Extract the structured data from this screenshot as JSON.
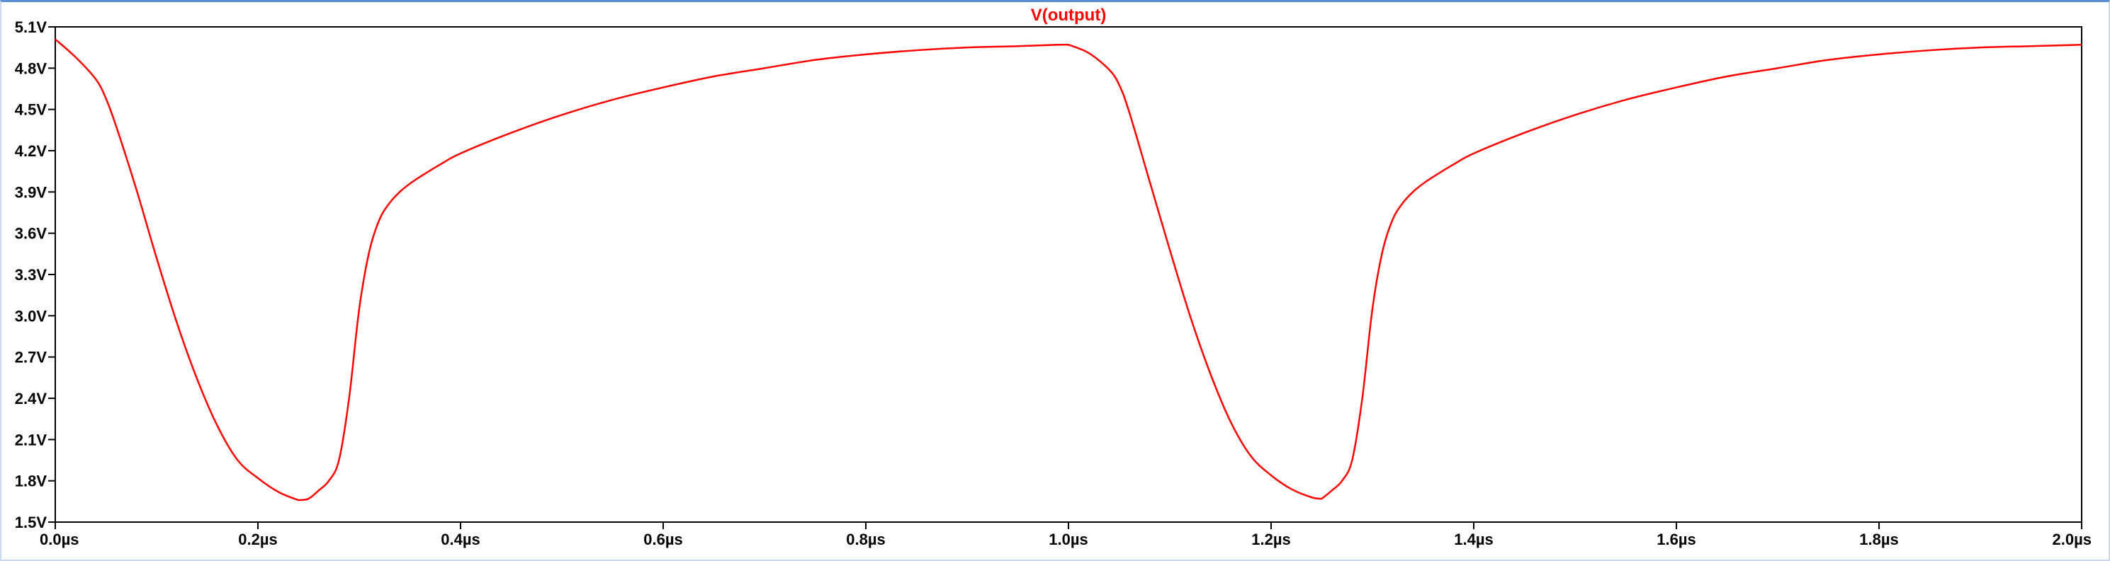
{
  "chart_data": {
    "type": "line",
    "title": "V(output)",
    "xlabel": "",
    "ylabel": "",
    "x_unit": "µs",
    "y_unit": "V",
    "xlim": [
      0.0,
      2.0
    ],
    "ylim": [
      1.5,
      5.1
    ],
    "grid": false,
    "x_ticks": [
      0.0,
      0.2,
      0.4,
      0.6,
      0.8,
      1.0,
      1.2,
      1.4,
      1.6,
      1.8,
      2.0
    ],
    "x_tick_labels": [
      "0.0µs",
      "0.2µs",
      "0.4µs",
      "0.6µs",
      "0.8µs",
      "1.0µs",
      "1.2µs",
      "1.4µs",
      "1.6µs",
      "1.8µs",
      "2.0µs"
    ],
    "y_ticks": [
      1.5,
      1.8,
      2.1,
      2.4,
      2.7,
      3.0,
      3.3,
      3.6,
      3.9,
      4.2,
      4.5,
      4.8,
      5.1
    ],
    "y_tick_labels": [
      "1.5V",
      "1.8V",
      "2.1V",
      "2.4V",
      "2.7V",
      "3.0V",
      "3.3V",
      "3.6V",
      "3.9V",
      "4.2V",
      "4.5V",
      "4.8V",
      "5.1V"
    ],
    "series": [
      {
        "name": "V(output)",
        "color": "#ff0000",
        "x": [
          0.0,
          0.02,
          0.04,
          0.05,
          0.06,
          0.08,
          0.1,
          0.12,
          0.14,
          0.16,
          0.18,
          0.2,
          0.22,
          0.24,
          0.25,
          0.26,
          0.27,
          0.28,
          0.29,
          0.3,
          0.31,
          0.32,
          0.33,
          0.34,
          0.35,
          0.36,
          0.38,
          0.4,
          0.45,
          0.5,
          0.55,
          0.6,
          0.65,
          0.7,
          0.75,
          0.8,
          0.85,
          0.9,
          0.95,
          0.99,
          1.0,
          1.02,
          1.04,
          1.05,
          1.06,
          1.08,
          1.1,
          1.12,
          1.14,
          1.16,
          1.18,
          1.2,
          1.22,
          1.24,
          1.25,
          1.26,
          1.27,
          1.28,
          1.29,
          1.3,
          1.31,
          1.32,
          1.33,
          1.34,
          1.35,
          1.36,
          1.38,
          1.4,
          1.45,
          1.5,
          1.55,
          1.6,
          1.65,
          1.7,
          1.75,
          1.8,
          1.85,
          1.9,
          1.95,
          2.0
        ],
        "values": [
          5.01,
          4.88,
          4.72,
          4.58,
          4.38,
          3.92,
          3.42,
          2.95,
          2.54,
          2.2,
          1.95,
          1.82,
          1.72,
          1.66,
          1.67,
          1.73,
          1.8,
          1.95,
          2.4,
          3.05,
          3.47,
          3.7,
          3.82,
          3.9,
          3.96,
          4.01,
          4.1,
          4.18,
          4.33,
          4.46,
          4.57,
          4.66,
          4.74,
          4.8,
          4.86,
          4.9,
          4.93,
          4.95,
          4.96,
          4.97,
          4.97,
          4.91,
          4.79,
          4.68,
          4.48,
          3.98,
          3.48,
          3.0,
          2.58,
          2.23,
          1.98,
          1.84,
          1.74,
          1.68,
          1.67,
          1.73,
          1.8,
          1.95,
          2.4,
          3.05,
          3.47,
          3.7,
          3.82,
          3.9,
          3.96,
          4.01,
          4.1,
          4.18,
          4.33,
          4.46,
          4.57,
          4.66,
          4.74,
          4.8,
          4.86,
          4.9,
          4.93,
          4.95,
          4.96,
          4.97
        ]
      }
    ]
  }
}
